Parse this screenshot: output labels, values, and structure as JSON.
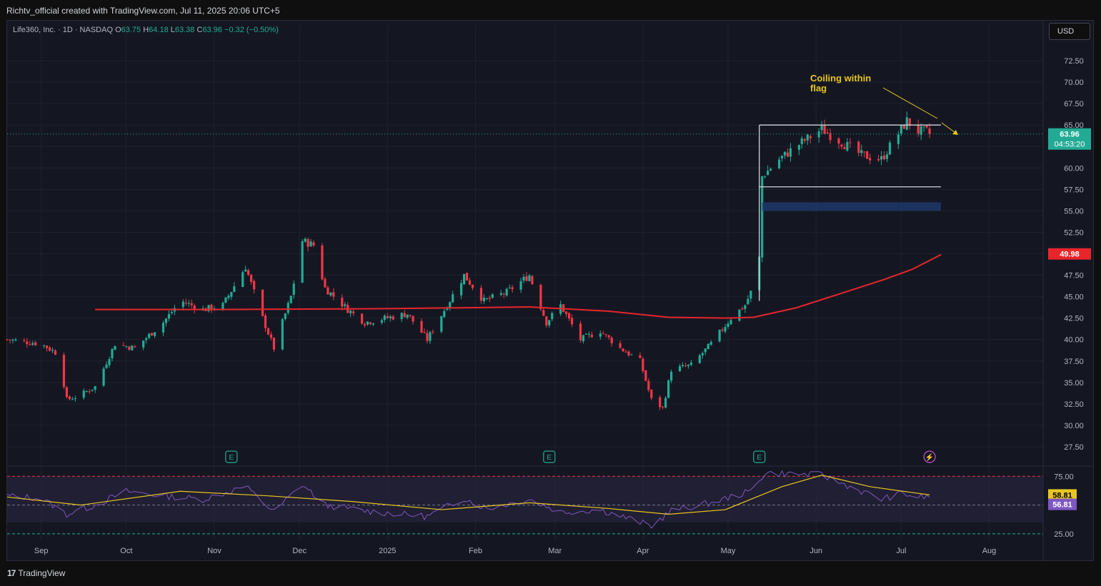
{
  "header": {
    "credit": "Richtv_official created with TradingView.com, Jul 11, 2025 20:06 UTC+5"
  },
  "legend": {
    "symbol": "Life360, Inc. · 1D · NASDAQ",
    "o_label": "O",
    "o_value": "63.75",
    "h_label": "H",
    "h_value": "64.18",
    "l_label": "L",
    "l_value": "63.38",
    "c_label": "C",
    "c_value": "63.96",
    "change": "−0.32 (−0.50%)"
  },
  "currency_button": "USD",
  "footer": {
    "brand": "TradingView",
    "brand_mark": "17"
  },
  "chart_data": {
    "type": "candlestick",
    "price_axis": {
      "ticks": [
        "72.50",
        "70.00",
        "67.50",
        "65.00",
        "62.50",
        "60.00",
        "57.50",
        "55.00",
        "52.50",
        "50.00",
        "47.50",
        "45.00",
        "42.50",
        "40.00",
        "37.50",
        "35.00",
        "32.50",
        "30.00",
        "27.50"
      ],
      "range": [
        25.5,
        75
      ]
    },
    "time_axis": {
      "labels": [
        {
          "label": "Sep",
          "date": "2024-09-01"
        },
        {
          "label": "Oct",
          "date": "2024-10-01"
        },
        {
          "label": "Nov",
          "date": "2024-11-01"
        },
        {
          "label": "Dec",
          "date": "2024-12-01"
        },
        {
          "label": "2025",
          "date": "2025-01-01"
        },
        {
          "label": "Feb",
          "date": "2025-02-01"
        },
        {
          "label": "Mar",
          "date": "2025-03-01"
        },
        {
          "label": "Apr",
          "date": "2025-04-01"
        },
        {
          "label": "May",
          "date": "2025-05-01"
        },
        {
          "label": "Jun",
          "date": "2025-06-01"
        },
        {
          "label": "Jul",
          "date": "2025-07-01"
        },
        {
          "label": "Aug",
          "date": "2025-08-01"
        }
      ],
      "range": [
        "2024-08-20",
        "2025-08-20"
      ]
    },
    "price_path": [
      [
        "2024-08-20",
        40.0
      ],
      [
        "2024-09-01",
        39.5
      ],
      [
        "2024-09-07",
        38.3
      ],
      [
        "2024-09-10",
        33.0
      ],
      [
        "2024-09-14",
        33.4
      ],
      [
        "2024-09-20",
        34.5
      ],
      [
        "2024-09-27",
        39.5
      ],
      [
        "2024-10-04",
        39.0
      ],
      [
        "2024-10-14",
        42.0
      ],
      [
        "2024-10-20",
        44.5
      ],
      [
        "2024-10-28",
        43.5
      ],
      [
        "2024-11-04",
        44.0
      ],
      [
        "2024-11-12",
        48.5
      ],
      [
        "2024-11-18",
        42.5
      ],
      [
        "2024-11-22",
        39.0
      ],
      [
        "2024-11-28",
        45.0
      ],
      [
        "2024-12-02",
        51.5
      ],
      [
        "2024-12-06",
        51.0
      ],
      [
        "2024-12-10",
        46.0
      ],
      [
        "2024-12-18",
        43.5
      ],
      [
        "2024-12-24",
        42.0
      ],
      [
        "2025-01-08",
        43.0
      ],
      [
        "2025-01-15",
        40.0
      ],
      [
        "2025-01-22",
        44.0
      ],
      [
        "2025-01-28",
        47.5
      ],
      [
        "2025-02-04",
        44.5
      ],
      [
        "2025-02-12",
        45.5
      ],
      [
        "2025-02-20",
        47.5
      ],
      [
        "2025-02-26",
        42.0
      ],
      [
        "2025-03-03",
        44.0
      ],
      [
        "2025-03-10",
        40.0
      ],
      [
        "2025-03-17",
        41.0
      ],
      [
        "2025-03-24",
        39.0
      ],
      [
        "2025-03-31",
        37.5
      ],
      [
        "2025-04-04",
        33.0
      ],
      [
        "2025-04-08",
        32.0
      ],
      [
        "2025-04-11",
        36.5
      ],
      [
        "2025-04-18",
        37.0
      ],
      [
        "2025-04-25",
        39.5
      ],
      [
        "2025-05-02",
        42.5
      ],
      [
        "2025-05-07",
        44.0
      ],
      [
        "2025-05-09",
        45.5
      ],
      [
        "2025-05-12",
        49.5
      ],
      [
        "2025-05-13",
        59.0
      ],
      [
        "2025-05-19",
        61.0
      ],
      [
        "2025-05-27",
        63.0
      ],
      [
        "2025-06-03",
        64.5
      ],
      [
        "2025-06-10",
        63.0
      ],
      [
        "2025-06-17",
        61.5
      ],
      [
        "2025-06-24",
        61.0
      ],
      [
        "2025-06-30",
        64.0
      ],
      [
        "2025-07-03",
        65.5
      ],
      [
        "2025-07-07",
        64.3
      ],
      [
        "2025-07-10",
        64.2
      ],
      [
        "2025-07-11",
        63.96
      ]
    ],
    "moving_average": {
      "color": "#e8252b",
      "points": [
        [
          "2024-09-20",
          43.5
        ],
        [
          "2024-11-01",
          43.5
        ],
        [
          "2025-01-01",
          43.6
        ],
        [
          "2025-02-20",
          43.8
        ],
        [
          "2025-03-20",
          43.3
        ],
        [
          "2025-04-10",
          42.6
        ],
        [
          "2025-05-01",
          42.5
        ],
        [
          "2025-05-10",
          42.6
        ],
        [
          "2025-05-25",
          43.7
        ],
        [
          "2025-06-10",
          45.4
        ],
        [
          "2025-06-25",
          47.0
        ],
        [
          "2025-07-05",
          48.2
        ],
        [
          "2025-07-15",
          49.9
        ]
      ]
    },
    "price_labels": [
      {
        "value": "63.96",
        "time": "04:53:20",
        "color": "#22ab94"
      },
      {
        "value": "49.98",
        "color": "#e8252b"
      }
    ],
    "last_price": 63.96,
    "ma_last": 49.98,
    "annotations": {
      "text_line1": "Coiling within",
      "text_line2": "flag",
      "text_color": "#e8c620",
      "flag_top": 65.0,
      "flag_bottom": 57.8,
      "flag_start": "2025-05-12",
      "flag_end": "2025-07-15",
      "zone_top": 56.0,
      "zone_bottom": 55.0,
      "zone_start": "2025-05-13",
      "zone_end": "2025-07-15"
    },
    "events": [
      {
        "symbol": "E",
        "date": "2024-11-07"
      },
      {
        "symbol": "E",
        "date": "2025-02-27"
      },
      {
        "symbol": "E",
        "date": "2025-05-12"
      },
      {
        "symbol": "⚡",
        "date": "2025-07-11"
      }
    ],
    "rsi": {
      "upper": "75.00",
      "lower": "25.00",
      "mid": "50.00",
      "rsi_value": "56.81",
      "ma_value": "58.81",
      "rsi_color": "#7e57c2",
      "ma_color": "#e8c620",
      "range": [
        20,
        82
      ],
      "rsi_points": [
        [
          "2024-08-20",
          58
        ],
        [
          "2024-09-01",
          56
        ],
        [
          "2024-09-10",
          42
        ],
        [
          "2024-09-20",
          50
        ],
        [
          "2024-10-01",
          62
        ],
        [
          "2024-10-14",
          58
        ],
        [
          "2024-10-28",
          55
        ],
        [
          "2024-11-12",
          66
        ],
        [
          "2024-11-22",
          44
        ],
        [
          "2024-12-02",
          68
        ],
        [
          "2024-12-10",
          50
        ],
        [
          "2024-12-24",
          45
        ],
        [
          "2025-01-15",
          40
        ],
        [
          "2025-01-28",
          56
        ],
        [
          "2025-02-05",
          47
        ],
        [
          "2025-02-20",
          55
        ],
        [
          "2025-03-03",
          44
        ],
        [
          "2025-03-17",
          46
        ],
        [
          "2025-04-04",
          32
        ],
        [
          "2025-04-11",
          45
        ],
        [
          "2025-04-25",
          52
        ],
        [
          "2025-05-09",
          62
        ],
        [
          "2025-05-14",
          78
        ],
        [
          "2025-06-03",
          76
        ],
        [
          "2025-06-17",
          62
        ],
        [
          "2025-06-24",
          55
        ],
        [
          "2025-07-01",
          60
        ],
        [
          "2025-07-07",
          57
        ],
        [
          "2025-07-11",
          56.81
        ]
      ],
      "ma_points": [
        [
          "2024-08-20",
          57
        ],
        [
          "2024-09-15",
          50
        ],
        [
          "2024-10-20",
          62
        ],
        [
          "2024-11-20",
          58
        ],
        [
          "2024-12-20",
          53
        ],
        [
          "2025-01-20",
          46
        ],
        [
          "2025-02-20",
          52
        ],
        [
          "2025-03-20",
          47
        ],
        [
          "2025-04-10",
          42
        ],
        [
          "2025-04-30",
          46
        ],
        [
          "2025-05-20",
          66
        ],
        [
          "2025-06-03",
          76
        ],
        [
          "2025-06-20",
          66
        ],
        [
          "2025-07-11",
          58.81
        ]
      ]
    },
    "colors": {
      "up": "#22ab94",
      "down": "#f23645",
      "background": "#141722",
      "grid": "#1e222d"
    }
  }
}
